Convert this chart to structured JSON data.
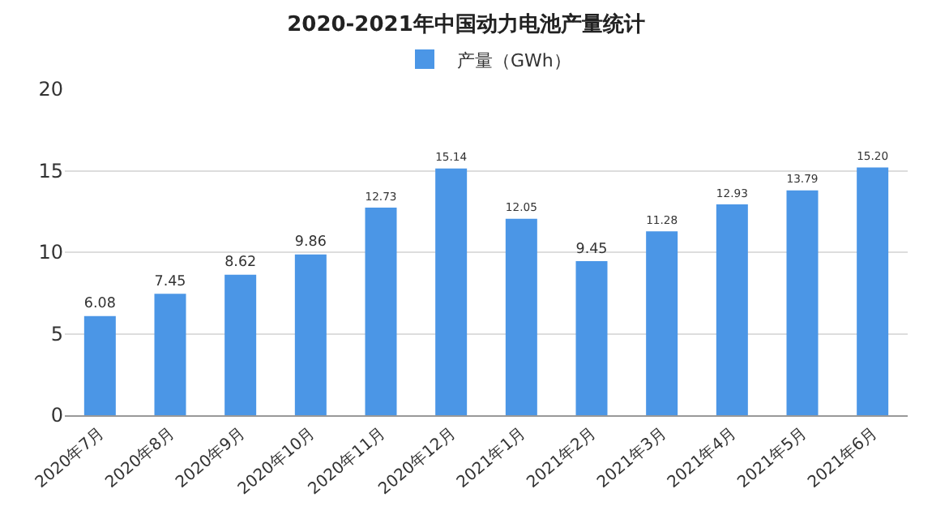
{
  "chart_data": {
    "type": "bar",
    "title": "2020-2021年中国动力电池产量统计",
    "categories": [
      "2020年7月",
      "2020年8月",
      "2020年9月",
      "2020年10月",
      "2020年11月",
      "2020年12月",
      "2021年1月",
      "2021年2月",
      "2021年3月",
      "2021年4月",
      "2021年5月",
      "2021年6月"
    ],
    "series": [
      {
        "name": "产量（GWh）",
        "color": "#4b96e6",
        "values": [
          6.08,
          7.45,
          8.62,
          9.86,
          12.73,
          15.14,
          12.05,
          9.45,
          11.28,
          12.93,
          13.79,
          15.2
        ],
        "value_labels": [
          "6.08",
          "7.45",
          "8.62",
          "9.86",
          "12.73",
          "15.14",
          "12.05",
          "9.45",
          "11.28",
          "12.93",
          "13.79",
          "15.20"
        ]
      }
    ],
    "ylim": [
      0,
      20
    ],
    "yticks": [
      0,
      5,
      10,
      15,
      20
    ],
    "grid": "y",
    "legend": "top"
  }
}
